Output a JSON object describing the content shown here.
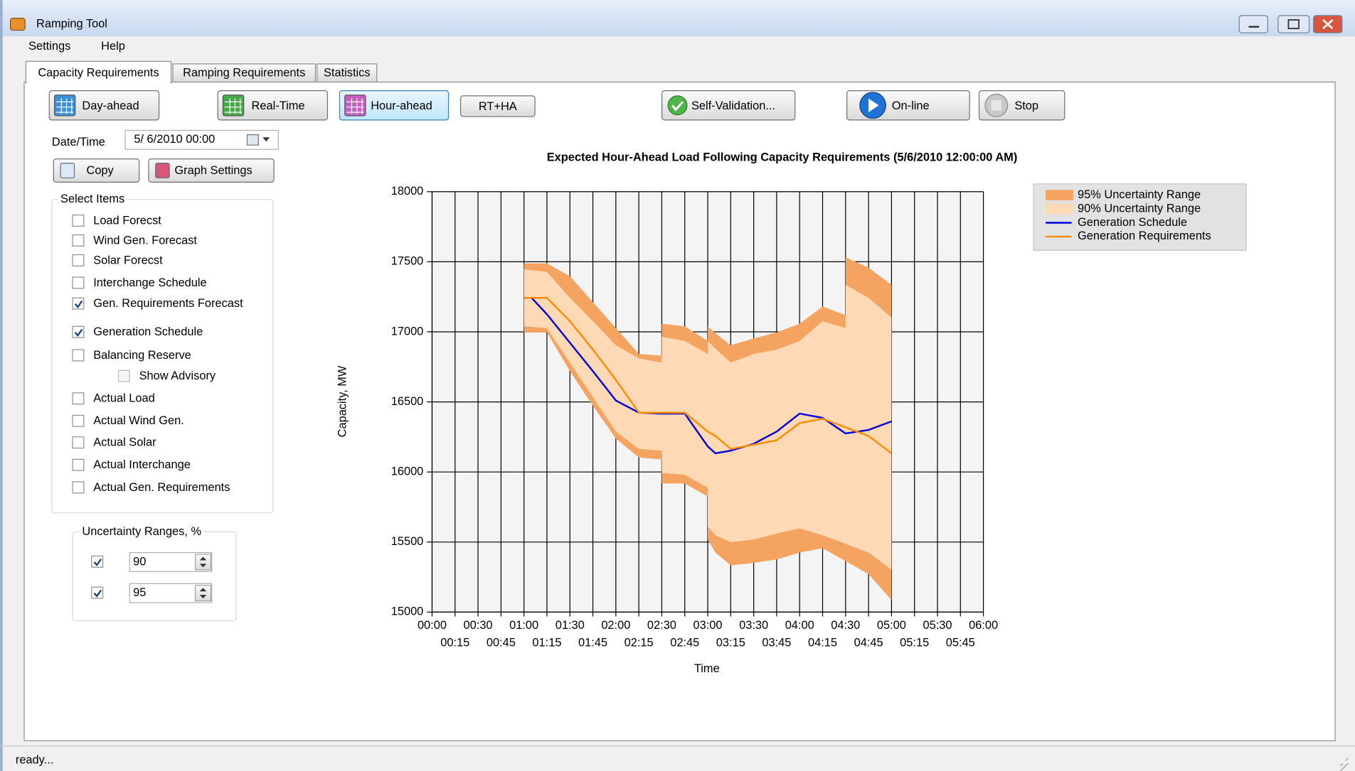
{
  "window": {
    "title": "Ramping Tool"
  },
  "menu": [
    "Settings",
    "Help"
  ],
  "tabs": [
    "Capacity Requirements",
    "Ramping Requirements",
    "Statistics"
  ],
  "buttons": [
    "Day-ahead",
    "Real-Time",
    "Hour-ahead",
    "RT+HA",
    "Self-Validation...",
    "On-line",
    "Stop"
  ],
  "date_time": {
    "label": "Date/Time",
    "value": "5/ 6/2010 00:00"
  },
  "actions": [
    "Copy",
    "Graph Settings"
  ],
  "select_items": {
    "title": "Select Items",
    "items": [
      {
        "label": "Load Forecst",
        "checked": false
      },
      {
        "label": "Wind Gen. Forecast",
        "checked": false
      },
      {
        "label": "Solar Forecst",
        "checked": false
      },
      {
        "label": "Interchange Schedule",
        "checked": false
      },
      {
        "label": "Gen. Requirements Forecast",
        "checked": true
      },
      {
        "label": "Generation Schedule",
        "checked": true
      },
      {
        "label": "Balancing Reserve",
        "checked": false,
        "sub_item": {
          "label": "Show Advisory",
          "checked": false
        }
      },
      {
        "label": "Actual Load",
        "checked": false
      },
      {
        "label": "Actual Wind Gen.",
        "checked": false
      },
      {
        "label": "Actual Solar",
        "checked": false
      },
      {
        "label": "Actual Interchange",
        "checked": false
      },
      {
        "label": "Actual Gen. Requirements",
        "checked": false
      }
    ]
  },
  "uncertainty": {
    "title": "Uncertainty Ranges, %",
    "rows": [
      {
        "checked": true,
        "value": 90
      },
      {
        "checked": true,
        "value": 95
      }
    ]
  },
  "status": "ready...",
  "chart_data": {
    "type": "line",
    "title": "Expected Hour-Ahead Load Following Capacity Requirements (5/6/2010 12:00:00 AM)",
    "x_label": "Time",
    "y_label": "Capacity, MW",
    "x": [
      60,
      65,
      75,
      90,
      105,
      120,
      135,
      150,
      150,
      165,
      180,
      180,
      185,
      195,
      210,
      225,
      240,
      255,
      270,
      270,
      285,
      300
    ],
    "series": [
      {
        "name": "95% Uncertainty Range",
        "kind": "band",
        "color": "#f4a460",
        "upper": [
          17489,
          17489,
          17489,
          17396,
          17212,
          17027,
          16842,
          16830,
          17058,
          17039,
          16934,
          17039,
          16990,
          16904,
          16953,
          16996,
          17058,
          17181,
          17119,
          17532,
          17458,
          17335
        ],
        "lower": [
          16996,
          16996,
          16996,
          16719,
          16473,
          16238,
          16103,
          16090,
          15918,
          15918,
          15825,
          15518,
          15425,
          15333,
          15351,
          15376,
          15425,
          15456,
          15364,
          15364,
          15271,
          15086
        ]
      },
      {
        "name": "90% Uncertainty Range",
        "kind": "band",
        "color": "#fdd9b5",
        "upper": [
          17446,
          17440,
          17427,
          17242,
          17076,
          16904,
          16811,
          16780,
          16965,
          16934,
          16842,
          16934,
          16880,
          16780,
          16842,
          16873,
          16934,
          17076,
          17027,
          17335,
          17242,
          17101
        ],
        "lower": [
          17039,
          17035,
          17027,
          16780,
          16534,
          16288,
          16164,
          16152,
          15992,
          15980,
          15887,
          15610,
          15548,
          15499,
          15518,
          15561,
          15598,
          15548,
          15487,
          15487,
          15425,
          15302
        ]
      },
      {
        "name": "Generation Schedule",
        "kind": "line",
        "color": "#0000e0",
        "values": [
          17242,
          17242,
          17125,
          16922,
          16719,
          16510,
          16423,
          16417,
          16417,
          16417,
          16183,
          16183,
          16133,
          16152,
          16201,
          16288,
          16417,
          16386,
          16275,
          16275,
          16300,
          16361
        ]
      },
      {
        "name": "Generation Requirements",
        "kind": "line",
        "color": "#ff8c00",
        "values": [
          17242,
          17242,
          17242,
          17076,
          16873,
          16657,
          16423,
          16423,
          16423,
          16423,
          16288,
          16288,
          16257,
          16164,
          16195,
          16226,
          16349,
          16380,
          16318,
          16318,
          16257,
          16133
        ]
      }
    ],
    "xlim": [
      0,
      360
    ],
    "xticks": [
      {
        "value": 0,
        "label": "00:00"
      },
      {
        "value": 15,
        "label": "00:15"
      },
      {
        "value": 30,
        "label": "00:30"
      },
      {
        "value": 45,
        "label": "00:45"
      },
      {
        "value": 60,
        "label": "01:00"
      },
      {
        "value": 75,
        "label": "01:15"
      },
      {
        "value": 90,
        "label": "01:30"
      },
      {
        "value": 105,
        "label": "01:45"
      },
      {
        "value": 120,
        "label": "02:00"
      },
      {
        "value": 135,
        "label": "02:15"
      },
      {
        "value": 150,
        "label": "02:30"
      },
      {
        "value": 165,
        "label": "02:45"
      },
      {
        "value": 180,
        "label": "03:00"
      },
      {
        "value": 195,
        "label": "03:15"
      },
      {
        "value": 210,
        "label": "03:30"
      },
      {
        "value": 225,
        "label": "03:45"
      },
      {
        "value": 240,
        "label": "04:00"
      },
      {
        "value": 255,
        "label": "04:15"
      },
      {
        "value": 270,
        "label": "04:30"
      },
      {
        "value": 285,
        "label": "04:45"
      },
      {
        "value": 300,
        "label": "05:00"
      },
      {
        "value": 315,
        "label": "05:15"
      },
      {
        "value": 330,
        "label": "05:30"
      },
      {
        "value": 345,
        "label": "05:45"
      },
      {
        "value": 360,
        "label": "06:00"
      }
    ],
    "ylim": [
      15000,
      18000
    ],
    "yticks": [
      15000,
      15500,
      16000,
      16500,
      17000,
      17500,
      18000
    ],
    "grid": true,
    "legend": "right"
  }
}
